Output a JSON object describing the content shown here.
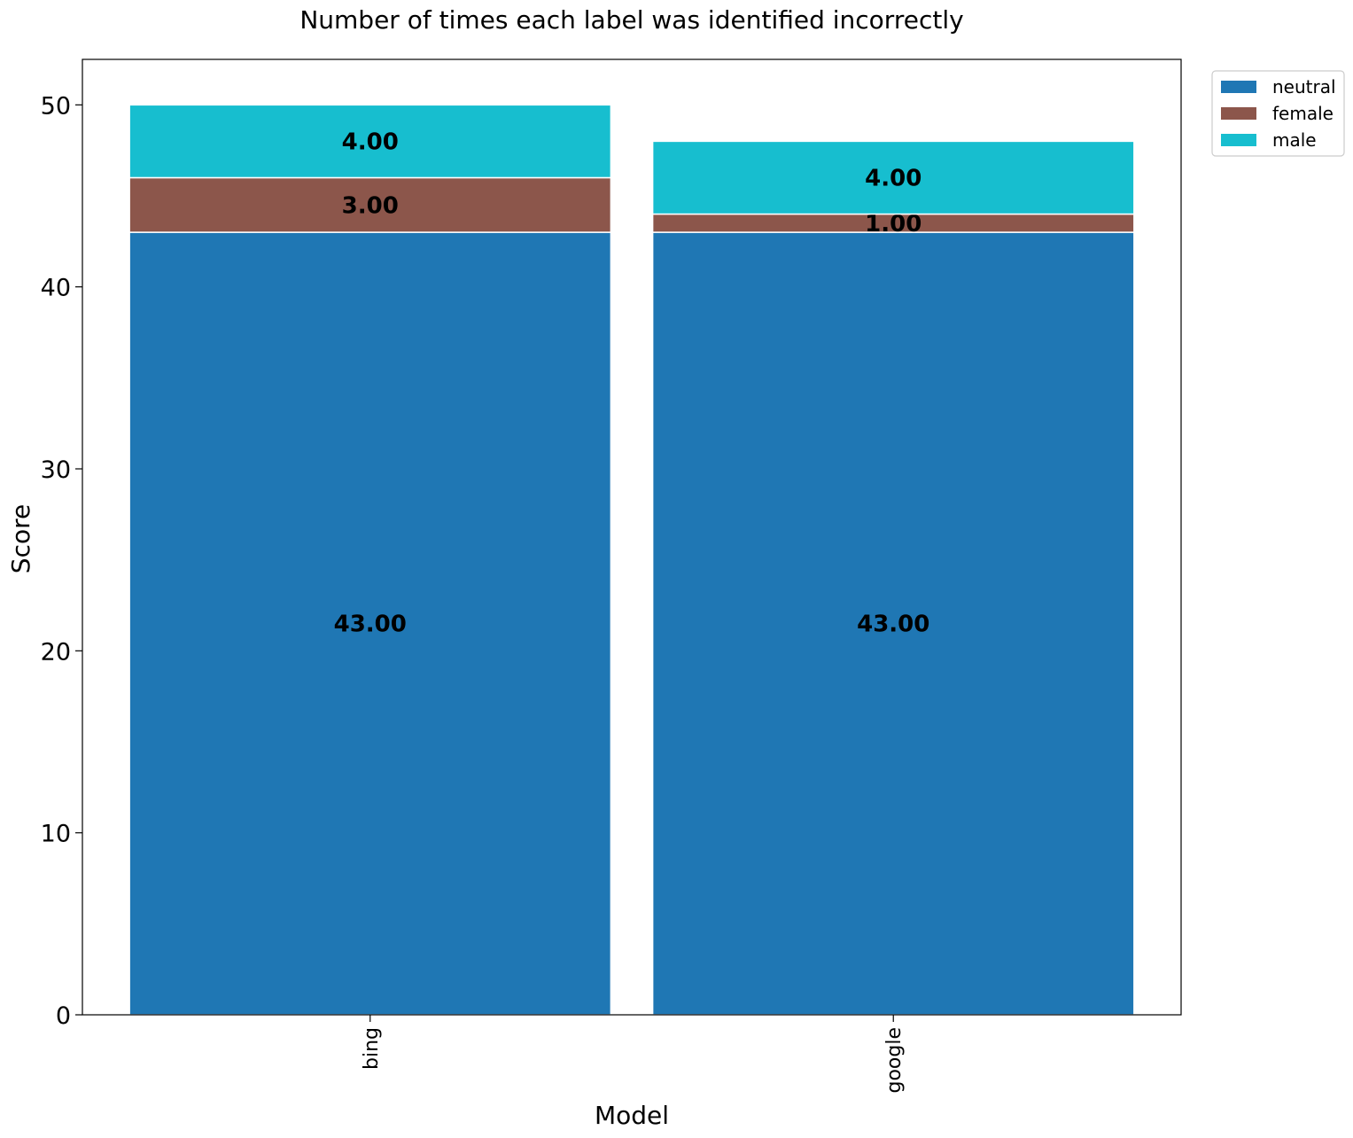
{
  "chart_data": {
    "type": "bar",
    "stacked": true,
    "title": "Number of times each label was identified incorrectly",
    "xlabel": "Model",
    "ylabel": "Score",
    "categories": [
      "bing",
      "google"
    ],
    "series": [
      {
        "name": "neutral",
        "color": "#1f77b4",
        "values": [
          43,
          43
        ],
        "labels": [
          "43.00",
          "43.00"
        ]
      },
      {
        "name": "female",
        "color": "#8c564b",
        "values": [
          3,
          1
        ],
        "labels": [
          "3.00",
          "1.00"
        ]
      },
      {
        "name": "male",
        "color": "#17becf",
        "values": [
          4,
          4
        ],
        "labels": [
          "4.00",
          "4.00"
        ]
      }
    ],
    "ylim": [
      0,
      52.5
    ],
    "yticks": [
      0,
      10,
      20,
      30,
      40,
      50
    ],
    "grid": false,
    "legend_position": "outside-top-right"
  }
}
